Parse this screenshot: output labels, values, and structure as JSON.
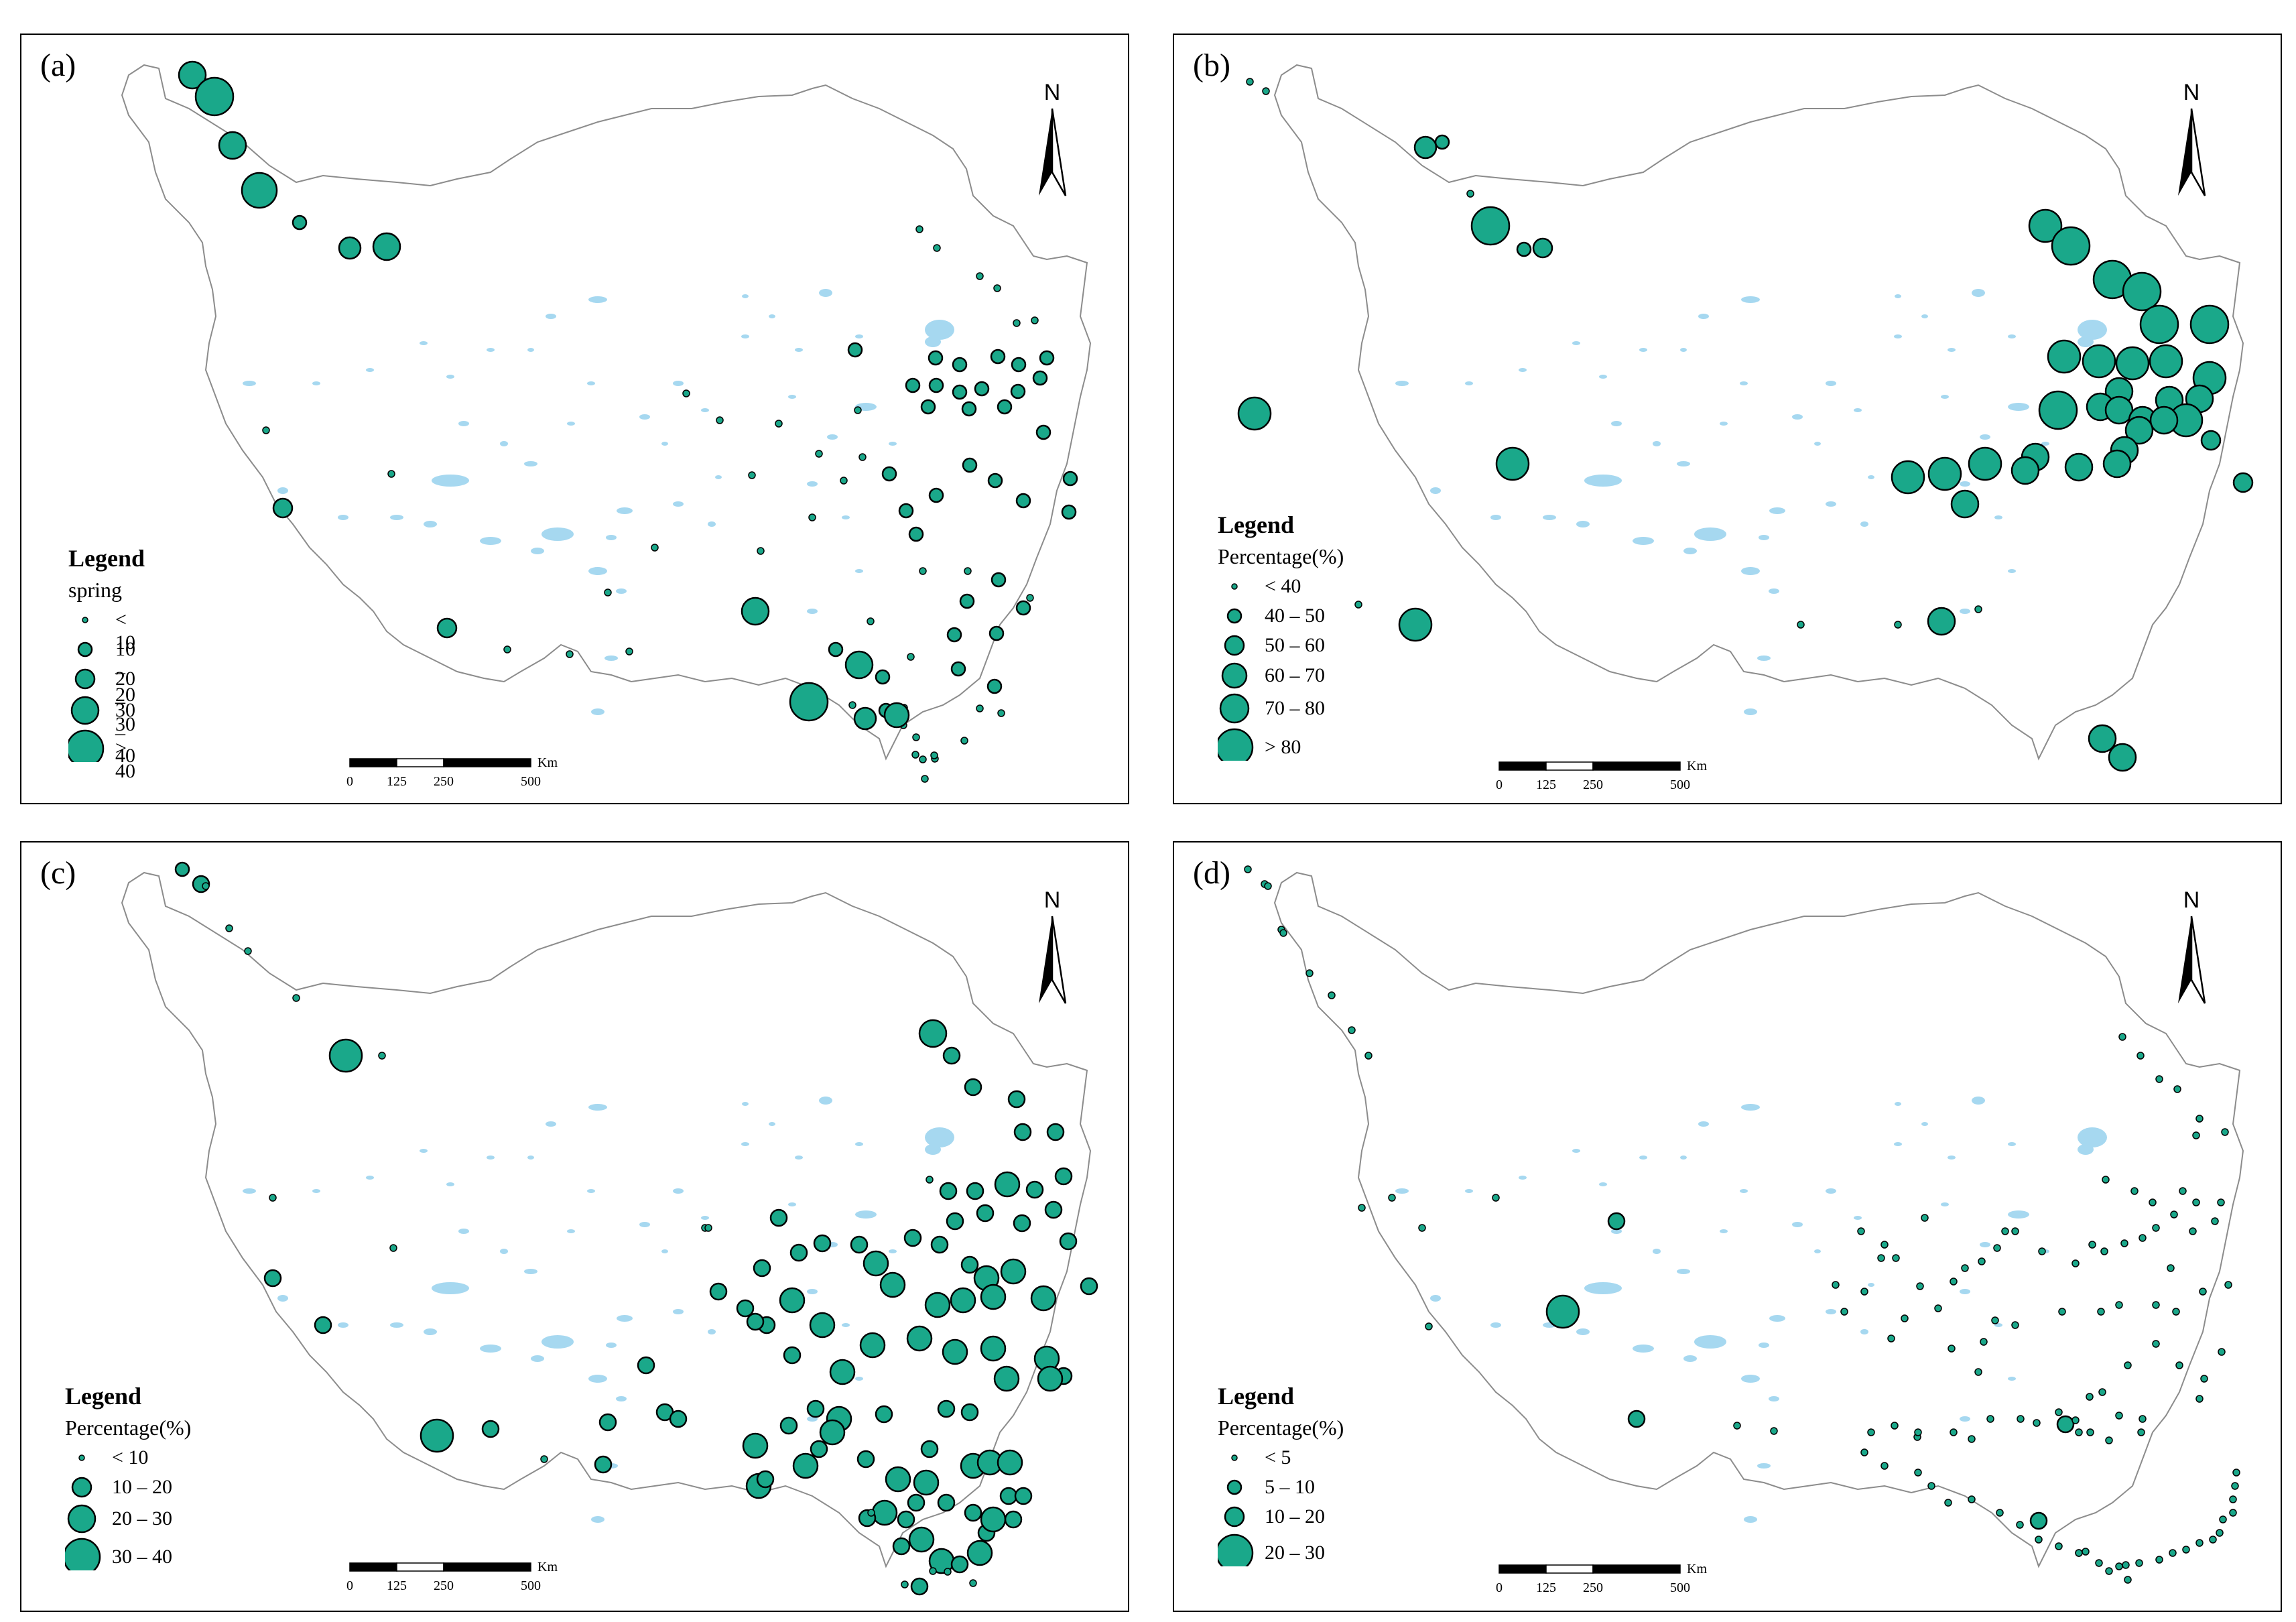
{
  "colors": {
    "marker_fill": "#1aa88a",
    "marker_stroke": "#000000",
    "lake": "#a6d8f0",
    "boundary": "#8c8c8c"
  },
  "scale": {
    "unit": "Km",
    "ticks": [
      "0",
      "125",
      "250",
      "500"
    ]
  },
  "north_label": "N",
  "panels": [
    {
      "label": "(a)",
      "legend_title": "Legend",
      "legend_subtitle": "spring",
      "classes": [
        "< 10",
        "10 – 20",
        "20 – 30",
        "30 – 40",
        "> 40"
      ]
    },
    {
      "label": "(b)",
      "legend_title": "Legend",
      "legend_subtitle": "Percentage(%)",
      "classes": [
        "< 40",
        "40 – 50",
        "50 – 60",
        "60 – 70",
        "70 – 80",
        "> 80"
      ]
    },
    {
      "label": "(c)",
      "legend_title": "Legend",
      "legend_subtitle": "Percentage(%)",
      "classes": [
        "< 10",
        "10 – 20",
        "20 – 30",
        "30 – 40"
      ]
    },
    {
      "label": "(d)",
      "legend_title": "Legend",
      "legend_subtitle": "Percentage(%)",
      "classes": [
        "< 5",
        "5 – 10",
        "10 – 20",
        "20 – 30"
      ]
    }
  ]
}
